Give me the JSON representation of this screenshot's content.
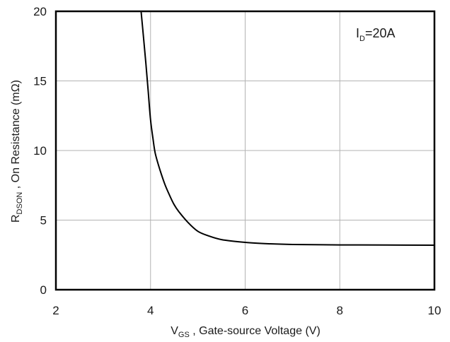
{
  "chart_data": {
    "type": "line",
    "xlim": [
      2,
      10
    ],
    "ylim": [
      0,
      20
    ],
    "x_ticks": [
      {
        "value": 2,
        "label": "2"
      },
      {
        "value": 4,
        "label": "4"
      },
      {
        "value": 6,
        "label": "6"
      },
      {
        "value": 8,
        "label": "8"
      },
      {
        "value": 10,
        "label": "10"
      }
    ],
    "y_ticks": [
      {
        "value": 0,
        "label": "0"
      },
      {
        "value": 5,
        "label": "5"
      },
      {
        "value": 10,
        "label": "10"
      },
      {
        "value": 15,
        "label": "15"
      },
      {
        "value": 20,
        "label": "20"
      }
    ],
    "grid": true,
    "xlabel": {
      "main": "V",
      "sub": "GS",
      "rest": " , Gate-source Voltage (V)"
    },
    "ylabel": {
      "main": "R",
      "sub": "DSON",
      "rest": " , On Resistance (mΩ)"
    },
    "annotation": {
      "main": "I",
      "sub": "D",
      "rest": "=20A"
    },
    "series": [
      {
        "x": [
          3.8,
          3.85,
          3.9,
          3.95,
          4.0,
          4.05,
          4.1,
          4.2,
          4.3,
          4.4,
          4.5,
          4.6,
          4.8,
          5.0,
          5.2,
          5.5,
          6.0,
          6.5,
          7.0,
          8.0,
          9.0,
          10.0
        ],
        "y": [
          20.0,
          18.2,
          16.3,
          14.3,
          12.2,
          10.9,
          9.8,
          8.6,
          7.6,
          6.8,
          6.1,
          5.6,
          4.8,
          4.2,
          3.9,
          3.6,
          3.4,
          3.3,
          3.25,
          3.22,
          3.21,
          3.2
        ]
      }
    ]
  },
  "colors": {
    "line": "#000000",
    "grid": "#b3b3b3",
    "frame": "#000000"
  }
}
